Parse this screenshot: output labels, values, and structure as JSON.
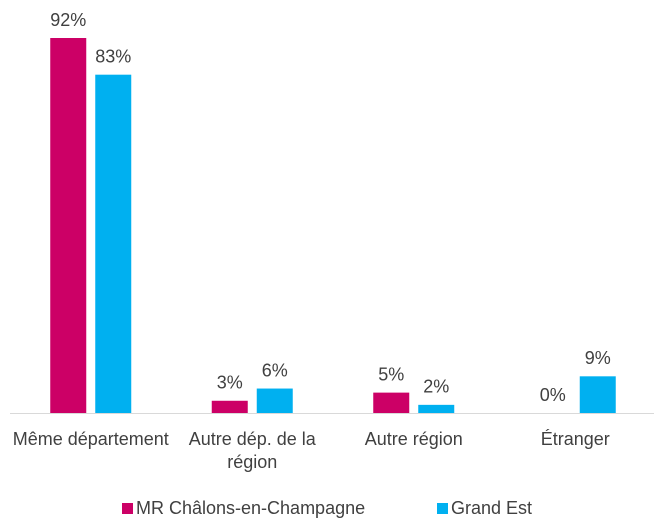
{
  "chart_data": {
    "type": "bar",
    "categories": [
      "Même département",
      "Autre dép. de la région",
      "Autre région",
      "Étranger"
    ],
    "series": [
      {
        "name": "MR Châlons-en-Champagne",
        "color": "#cc0066",
        "values": [
          92,
          3,
          5,
          0
        ],
        "value_labels": [
          "92%",
          "3%",
          "5%",
          "0%"
        ]
      },
      {
        "name": "Grand Est",
        "color": "#00b0f0",
        "values": [
          83,
          6,
          2,
          9
        ],
        "value_labels": [
          "83%",
          "6%",
          "2%",
          "9%"
        ]
      }
    ]
  }
}
